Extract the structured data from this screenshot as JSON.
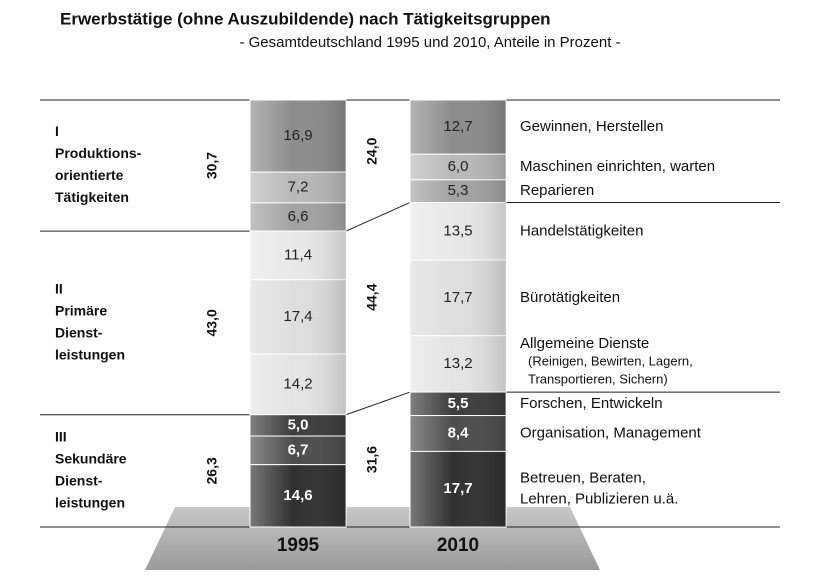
{
  "chart_data": {
    "type": "stacked-bar",
    "title": "Erwerbstätige (ohne Auszubildende) nach Tätigkeitsgruppen",
    "subtitle": "- Gesamtdeutschland 1995 und 2010, Anteile in Prozent -",
    "categories": [
      "1995",
      "2010"
    ],
    "groups": [
      {
        "name": [
          "I",
          "Produktions-",
          "orientierte",
          "Tätigkeiten"
        ],
        "totals": [
          30.7,
          24.0
        ],
        "total_labels": [
          "30,7",
          "24,0"
        ],
        "series": [
          {
            "name": [
              "Gewinnen, Herstellen"
            ],
            "color": "#8c8c8c",
            "values": [
              16.9,
              12.7
            ],
            "value_labels": [
              "16,9",
              "12,7"
            ]
          },
          {
            "name": [
              "Maschinen einrichten, warten"
            ],
            "color": "#b8b8b8",
            "values": [
              7.2,
              6.0
            ],
            "value_labels": [
              "7,2",
              "6,0"
            ]
          },
          {
            "name": [
              "Reparieren"
            ],
            "color": "#a2a2a2",
            "values": [
              6.6,
              5.3
            ],
            "value_labels": [
              "6,6",
              "5,3"
            ]
          }
        ]
      },
      {
        "name": [
          "II",
          "Primäre",
          "Dienst-",
          "leistungen"
        ],
        "totals": [
          43.0,
          44.4
        ],
        "total_labels": [
          "43,0",
          "44,4"
        ],
        "series": [
          {
            "name": [
              "Handelstätigkeiten"
            ],
            "color": "#e8e8e8",
            "values": [
              11.4,
              13.5
            ],
            "value_labels": [
              "11,4",
              "13,5"
            ]
          },
          {
            "name": [
              "Bürotätigkeiten"
            ],
            "color": "#dedede",
            "values": [
              17.4,
              17.7
            ],
            "value_labels": [
              "17,4",
              "17,7"
            ]
          },
          {
            "name": [
              "Allgemeine Dienste",
              "(Reinigen, Bewirten, Lagern,",
              "Transportieren, Sichern)"
            ],
            "color": "#e4e4e4",
            "values": [
              14.2,
              13.2
            ],
            "value_labels": [
              "14,2",
              "13,2"
            ]
          }
        ]
      },
      {
        "name": [
          "III",
          "Sekundäre",
          "Dienst-",
          "leistungen"
        ],
        "totals": [
          26.3,
          31.6
        ],
        "total_labels": [
          "26,3",
          "31,6"
        ],
        "series": [
          {
            "name": [
              "Forschen, Entwickeln"
            ],
            "color": "#3c3c3c",
            "values": [
              5.0,
              5.5
            ],
            "value_labels": [
              "5,0",
              "5,5"
            ]
          },
          {
            "name": [
              "Organisation, Management"
            ],
            "color": "#4c4c4c",
            "values": [
              6.7,
              8.4
            ],
            "value_labels": [
              "6,7",
              "8,4"
            ]
          },
          {
            "name": [
              "Betreuen, Beraten,",
              "Lehren, Publizieren u.ä."
            ],
            "color": "#303030",
            "values": [
              14.6,
              17.7
            ],
            "value_labels": [
              "14,6",
              "17,7"
            ]
          }
        ]
      }
    ]
  }
}
